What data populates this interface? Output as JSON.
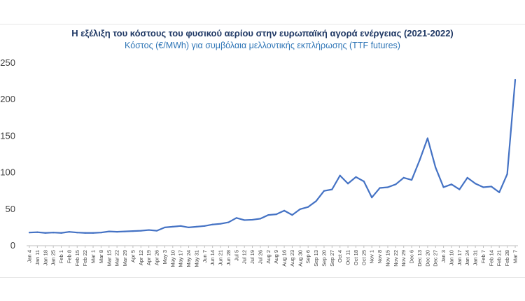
{
  "chart_data": {
    "type": "line",
    "title": "Η εξέλιξη του κόστους του φυσικού αερίου στην ευρωπαϊκή αγορά ενέργειας (2021-2022)",
    "subtitle": "Κόστος (€/MWh) για συμβόλαια μελλοντικής εκπλήρωσης (TTF futures)",
    "xlabel": "",
    "ylabel": "",
    "ylim": [
      0,
      250
    ],
    "yticks": [
      0,
      50,
      100,
      150,
      200,
      250
    ],
    "grid": false,
    "color": "#4472c4",
    "categories": [
      "Jan 4",
      "Jan 11",
      "Jan 18",
      "Jan 25",
      "Feb 1",
      "Feb 8",
      "Feb 15",
      "Feb 22",
      "Mar 1",
      "Mar 8",
      "Mar 15",
      "Mar 22",
      "Mar 29",
      "Apr 5",
      "Apr 12",
      "Apr 19",
      "Apr 26",
      "May 3",
      "May 10",
      "May 17",
      "May 24",
      "May 31",
      "Jun 7",
      "Jun 14",
      "Jun 21",
      "Jun 28",
      "Jul 5",
      "Jul 12",
      "Jul 19",
      "Jul 26",
      "Aug 2",
      "Aug 9",
      "Aug 16",
      "Aug 23",
      "Aug 30",
      "Sep 6",
      "Sep 13",
      "Sep 20",
      "Sep 27",
      "Oct 4",
      "Oct 11",
      "Oct 18",
      "Oct 25",
      "Nov 1",
      "Nov 8",
      "Nov 15",
      "Nov 22",
      "Nov 29",
      "Dec 6",
      "Dec 13",
      "Dec 20",
      "Dec 27",
      "Jan 3",
      "Jan 10",
      "Jan 17",
      "Jan 24",
      "Jan 31",
      "Feb 7",
      "Feb 14",
      "Feb 21",
      "Feb 28",
      "Mar 7"
    ],
    "labels": [
      "Jan 4",
      "Jan 11",
      "Jan 18",
      "Jan 25",
      "Feb 1",
      "Feb 8",
      "Feb 15",
      "Feb 22",
      "Mar 1",
      "Mar 8",
      "Mar 15",
      "Mar 22",
      "Mar 29",
      "Apr 5",
      "Apr 12",
      "Apr 19",
      "Apr 26",
      "May 3",
      "May 10",
      "May 17",
      "May 24",
      "May 31",
      "Jun 7",
      "Jun 14",
      "Jun 21",
      "Jun 28",
      "Jul 5",
      "Jul 12",
      "Jul 19",
      "Jul 26",
      "Aug 2",
      "Aug 9",
      "Aug 16",
      "Aug 23",
      "Aug 30",
      "Sep 6",
      "Sep 13",
      "Sep 20",
      "Sep 27",
      "Oct 4",
      "Oct 11",
      "Oct 18",
      "Oct 25",
      "Nov 1",
      "Nov 8",
      "Nov 15",
      "Nov 22",
      "Nov 29",
      "Dec 6",
      "Dec 13",
      "Dec 20",
      "Dec 27",
      "Jan 3",
      "Jan 10",
      "Jan 17",
      "Jan 24",
      "Jan 31",
      "Feb 7",
      "Feb 14",
      "Feb 21",
      "Feb 28",
      "Mar 7"
    ],
    "values": [
      18,
      18.5,
      17.5,
      18,
      17.5,
      19,
      18,
      17.5,
      17.5,
      18,
      19.5,
      19,
      19.5,
      20,
      20.5,
      21.5,
      20.5,
      25,
      26,
      27,
      25,
      26,
      27,
      29,
      30,
      32,
      38,
      35,
      35.5,
      37,
      42,
      43,
      48,
      42,
      50,
      53,
      61,
      75,
      77,
      96,
      85,
      94,
      88,
      66,
      79,
      80,
      84,
      93,
      90,
      117,
      147,
      107,
      80,
      84,
      77,
      93,
      85,
      80,
      81,
      73,
      98,
      227
    ]
  }
}
